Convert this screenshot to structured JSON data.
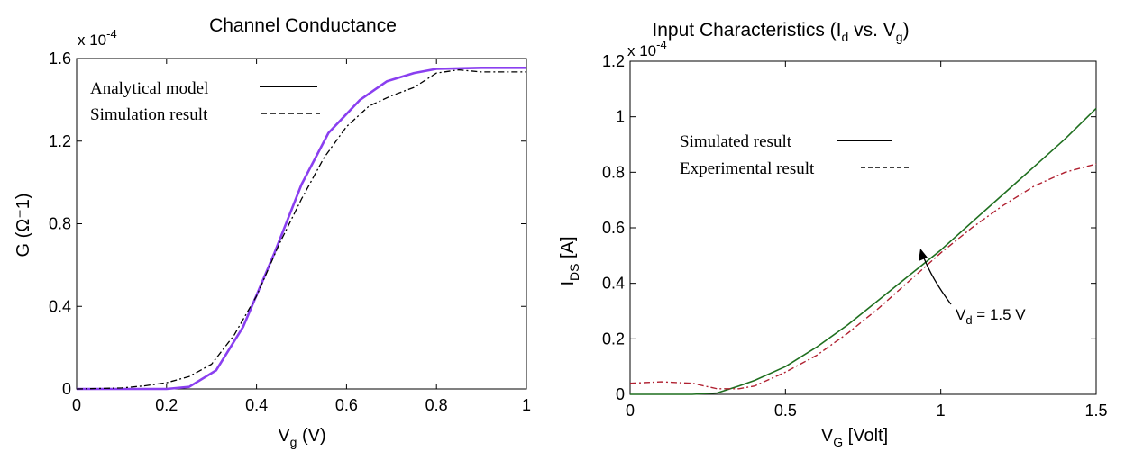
{
  "chart_data": [
    {
      "type": "line",
      "title": "Channel Conductance",
      "xlabel_main": "V",
      "xlabel_sub": "g",
      "xlabel_tail": " (V)",
      "ylabel": "G (Ω⁻1)",
      "y_multiplier": "x 10",
      "y_multiplier_exp": "-4",
      "xlim": [
        0,
        1
      ],
      "ylim": [
        0,
        1.6
      ],
      "x_ticks": [
        "0",
        "0.2",
        "0.4",
        "0.6",
        "0.8",
        "1"
      ],
      "y_ticks": [
        "0",
        "0.4",
        "0.8",
        "1.2",
        "1.6"
      ],
      "grid": false,
      "legend_position": "top-left",
      "legend": [
        "Analytical model",
        "Simulation result"
      ],
      "series": [
        {
          "name": "Analytical model",
          "color": "#8a3ff0",
          "x": [
            0,
            0.1,
            0.2,
            0.25,
            0.31,
            0.37,
            0.44,
            0.5,
            0.56,
            0.63,
            0.69,
            0.75,
            0.8,
            0.9,
            1.0
          ],
          "y": [
            0,
            0,
            0,
            0.01,
            0.09,
            0.3,
            0.66,
            0.99,
            1.24,
            1.4,
            1.49,
            1.53,
            1.55,
            1.555,
            1.555
          ]
        },
        {
          "name": "Simulation result",
          "color": "#000000",
          "x": [
            0,
            0.1,
            0.15,
            0.2,
            0.25,
            0.3,
            0.35,
            0.4,
            0.45,
            0.5,
            0.55,
            0.6,
            0.65,
            0.7,
            0.75,
            0.8,
            0.85,
            0.9,
            1.0
          ],
          "y": [
            0,
            0.005,
            0.015,
            0.03,
            0.06,
            0.12,
            0.26,
            0.45,
            0.7,
            0.92,
            1.12,
            1.27,
            1.37,
            1.42,
            1.46,
            1.53,
            1.545,
            1.535,
            1.535
          ]
        }
      ]
    },
    {
      "type": "line",
      "title_pre": "Input Characteristics (I",
      "title_sub1": "d",
      "title_mid": " vs. V",
      "title_sub2": "g",
      "title_post": ")",
      "xlabel_main": "V",
      "xlabel_sub": "G",
      "xlabel_tail": " [Volt]",
      "ylabel_main": "I",
      "ylabel_sub": "DS",
      "ylabel_tail": " [A]",
      "y_multiplier": "x 10",
      "y_multiplier_exp": "-4",
      "xlim": [
        0,
        1.5
      ],
      "ylim": [
        0,
        1.2
      ],
      "x_ticks": [
        "0",
        "0.5",
        "1",
        "1.5"
      ],
      "y_ticks": [
        "0",
        "0.2",
        "0.4",
        "0.6",
        "0.8",
        "1",
        "1.2"
      ],
      "grid": false,
      "legend_position": "top-left",
      "legend": [
        "Simulated result",
        "Experimental result"
      ],
      "annotation_main": "V",
      "annotation_sub": "d",
      "annotation_tail": " = 1.5 V",
      "annotation_x": 0.93,
      "annotation_y": 0.51,
      "series": [
        {
          "name": "Simulated result",
          "color": "#1f6f1f",
          "x": [
            0,
            0.2,
            0.28,
            0.35,
            0.4,
            0.5,
            0.6,
            0.7,
            0.8,
            0.9,
            1.0,
            1.1,
            1.2,
            1.3,
            1.4,
            1.5
          ],
          "y": [
            0,
            0,
            0.005,
            0.03,
            0.05,
            0.1,
            0.17,
            0.25,
            0.34,
            0.43,
            0.52,
            0.62,
            0.72,
            0.82,
            0.92,
            1.03
          ]
        },
        {
          "name": "Experimental result",
          "color": "#b02030",
          "x": [
            0,
            0.1,
            0.2,
            0.28,
            0.35,
            0.4,
            0.5,
            0.6,
            0.7,
            0.8,
            0.9,
            1.0,
            1.1,
            1.2,
            1.3,
            1.4,
            1.5
          ],
          "y": [
            0.04,
            0.045,
            0.04,
            0.02,
            0.02,
            0.03,
            0.08,
            0.14,
            0.22,
            0.31,
            0.41,
            0.51,
            0.6,
            0.68,
            0.75,
            0.8,
            0.83
          ]
        }
      ]
    }
  ]
}
